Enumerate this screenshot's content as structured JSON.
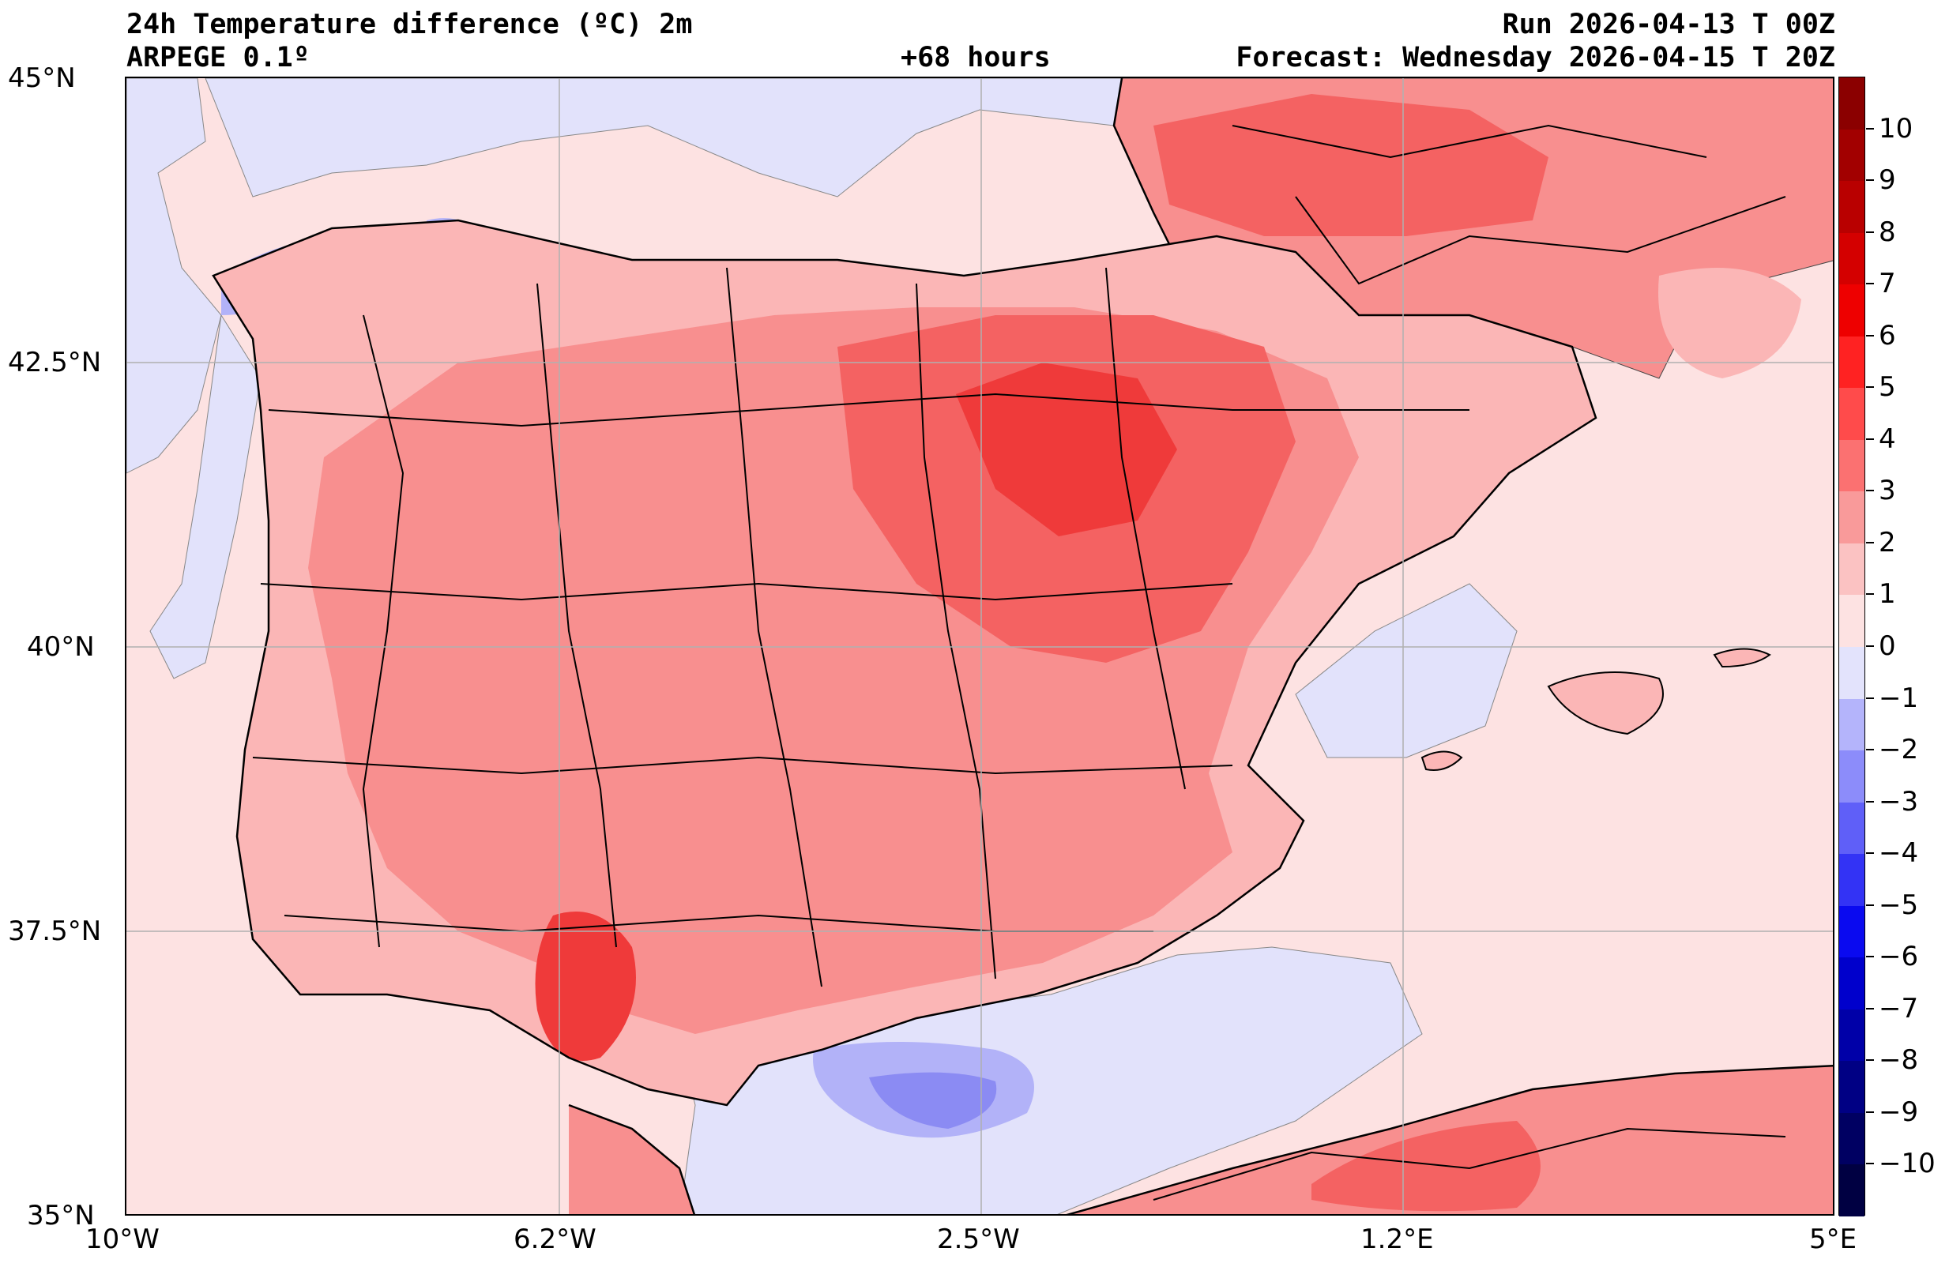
{
  "header": {
    "title": "24h Temperature difference (ºC) 2m",
    "model": "ARPEGE 0.1º",
    "lead": "+68 hours",
    "run": "Run 2026-04-13 T 00Z",
    "forecast": "Forecast: Wednesday 2026-04-15 T 20Z"
  },
  "map": {
    "lon_range": [
      -10,
      5
    ],
    "lat_range": [
      35,
      45
    ],
    "lon_ticks": [
      {
        "value": -10,
        "label": "10°W"
      },
      {
        "value": -6.2,
        "label": "6.2°W"
      },
      {
        "value": -2.5,
        "label": "2.5°W"
      },
      {
        "value": 1.2,
        "label": "1.2°E"
      },
      {
        "value": 5,
        "label": "5°E"
      }
    ],
    "lat_ticks": [
      {
        "value": 45,
        "label": "45°N"
      },
      {
        "value": 42.5,
        "label": "42.5°N"
      },
      {
        "value": 40,
        "label": "40°N"
      },
      {
        "value": 37.5,
        "label": "37.5°N"
      },
      {
        "value": 35,
        "label": "35°N"
      }
    ],
    "gridlines": true,
    "colors": {
      "background_0_1": "#fde2e2",
      "neg_0_1": "#e2e2fb",
      "pos_1_2": "#fbb6b6",
      "pos_2_3": "#f88f8f",
      "pos_3_4": "#f46262",
      "pos_4_5": "#ef3a3a",
      "neg_1_2": "#b2b2f8",
      "neg_2_3": "#8b8bf3"
    }
  },
  "colorbar": {
    "levels": [
      {
        "label": "10",
        "color": "#8b0000"
      },
      {
        "label": "9",
        "color": "#a20000"
      },
      {
        "label": "8",
        "color": "#b90000"
      },
      {
        "label": "7",
        "color": "#d40000"
      },
      {
        "label": "6",
        "color": "#ee0000"
      },
      {
        "label": "5",
        "color": "#ff2222"
      },
      {
        "label": "4",
        "color": "#ff4b4b"
      },
      {
        "label": "3",
        "color": "#fb7171"
      },
      {
        "label": "2",
        "color": "#f99a9a"
      },
      {
        "label": "1",
        "color": "#fbc2c2"
      },
      {
        "label": "0",
        "color": "#fde2e2"
      },
      {
        "label": "−1",
        "color": "#e3e3fc"
      },
      {
        "label": "−2",
        "color": "#b4b4fb"
      },
      {
        "label": "−3",
        "color": "#8c8cfa"
      },
      {
        "label": "−4",
        "color": "#5f5ff8"
      },
      {
        "label": "−5",
        "color": "#3333f5"
      },
      {
        "label": "−6",
        "color": "#0a0af0"
      },
      {
        "label": "−7",
        "color": "#0000cc"
      },
      {
        "label": "−8",
        "color": "#0000a8"
      },
      {
        "label": "−9",
        "color": "#000084"
      },
      {
        "label": "−10",
        "color": "#000062"
      }
    ],
    "bottom_color": "#000042"
  }
}
